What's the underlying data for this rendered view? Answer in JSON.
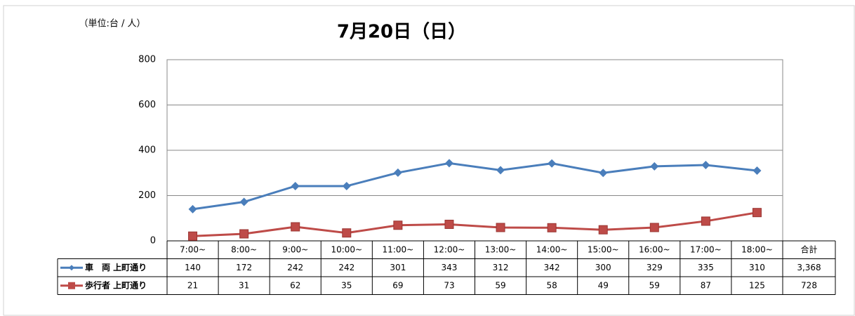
{
  "chart_data": {
    "type": "line",
    "title": "7月20日（日）",
    "unit_label": "（単位:台 / 人）",
    "categories": [
      "7:00~",
      "8:00~",
      "9:00~",
      "10:00~",
      "11:00~",
      "12:00~",
      "13:00~",
      "14:00~",
      "15:00~",
      "16:00~",
      "17:00~",
      "18:00~"
    ],
    "series": [
      {
        "name": "車　両 上町通り",
        "color": "#4a7ebb",
        "marker": "diamond",
        "values": [
          140,
          172,
          242,
          242,
          301,
          343,
          312,
          342,
          300,
          329,
          335,
          310
        ],
        "total": "3,368"
      },
      {
        "name": "歩行者 上町通り",
        "color": "#be4b48",
        "marker": "square",
        "values": [
          21,
          31,
          62,
          35,
          69,
          73,
          59,
          58,
          49,
          59,
          87,
          125
        ],
        "total": "728"
      }
    ],
    "total_header": "合計",
    "ylim": [
      0,
      800
    ],
    "yticks": [
      0,
      200,
      400,
      600,
      800
    ],
    "grid": true
  }
}
